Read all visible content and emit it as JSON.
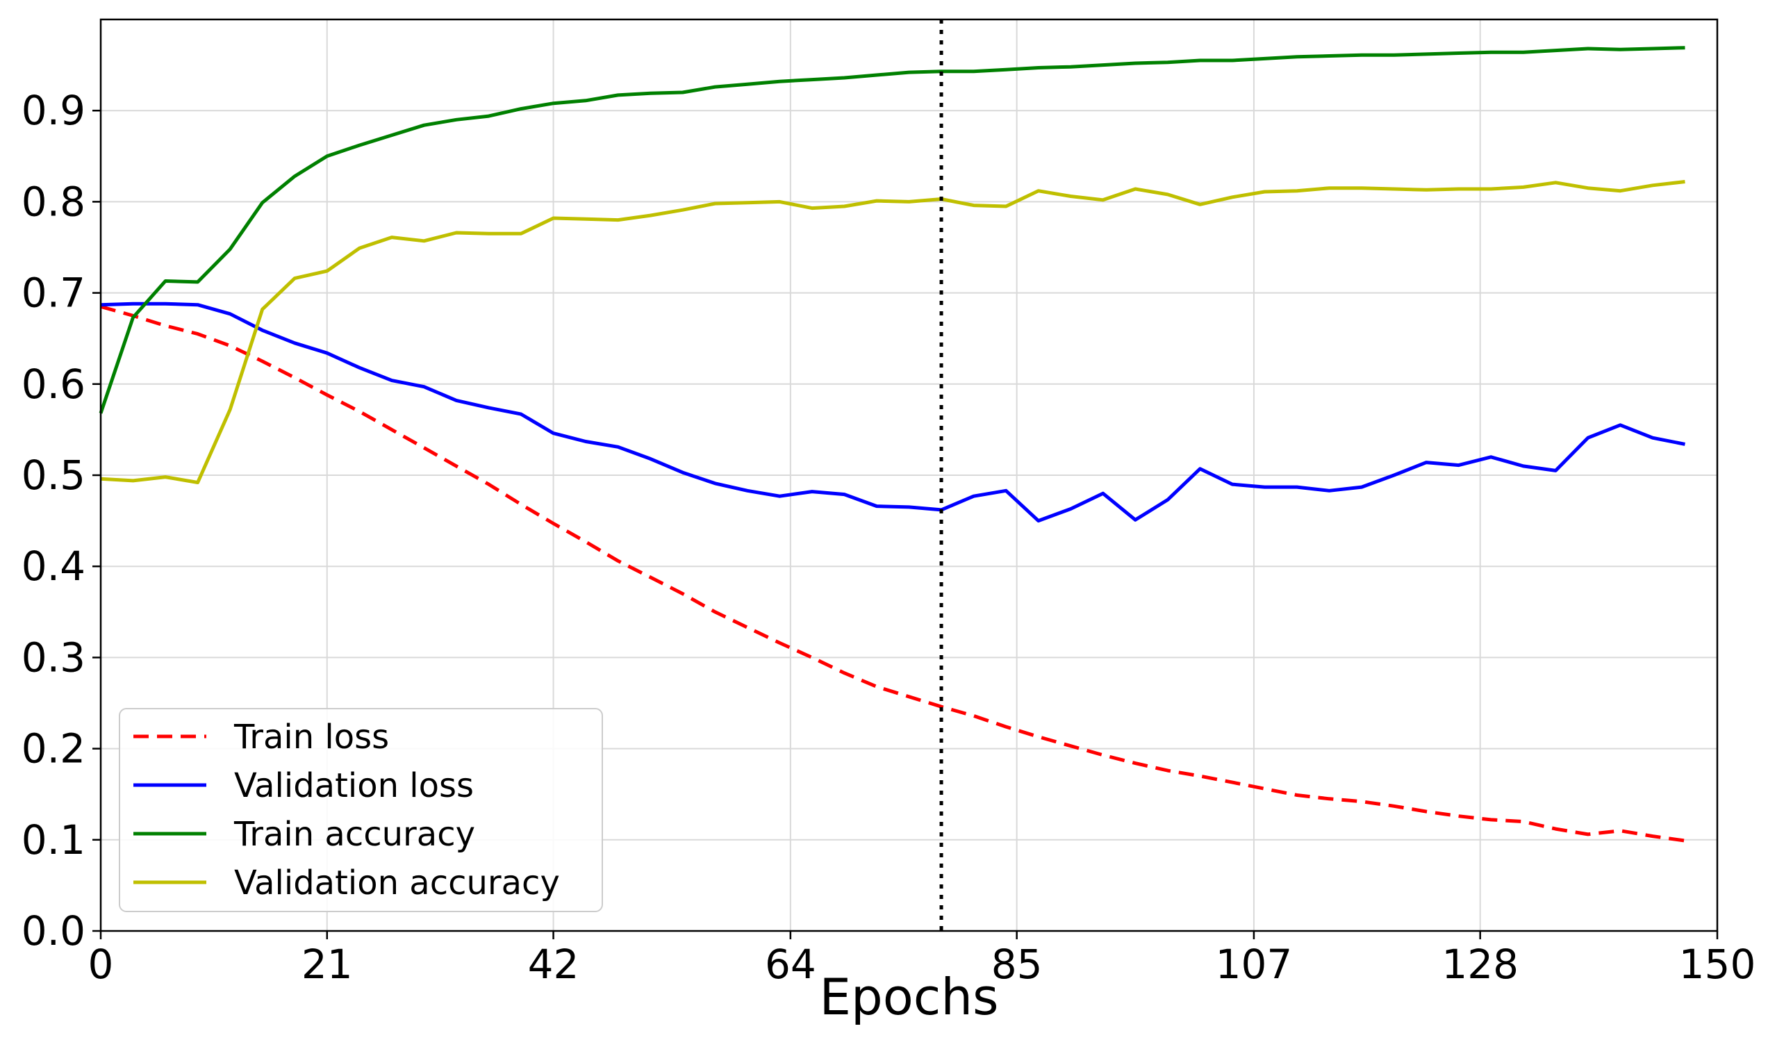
{
  "chart_data": {
    "type": "line",
    "title": "",
    "xlabel": "Epochs",
    "ylabel": "",
    "xlim": [
      0,
      150
    ],
    "ylim": [
      0,
      1.0
    ],
    "grid": true,
    "legend_position": "bottom-left",
    "x_ticks": [
      0,
      21,
      42,
      64,
      85,
      107,
      128,
      150
    ],
    "y_ticks": [
      0.0,
      0.1,
      0.2,
      0.3,
      0.4,
      0.5,
      0.6,
      0.7,
      0.8,
      0.9
    ],
    "y_tick_labels": [
      "0.0",
      "0.1",
      "0.2",
      "0.3",
      "0.4",
      "0.5",
      "0.6",
      "0.7",
      "0.8",
      "0.9"
    ],
    "vertical_marker": {
      "x": 78,
      "style": "dotted",
      "color": "#000000"
    },
    "x": [
      0,
      3,
      6,
      9,
      12,
      15,
      18,
      21,
      24,
      27,
      30,
      33,
      36,
      39,
      42,
      45,
      48,
      51,
      54,
      57,
      60,
      63,
      66,
      69,
      72,
      75,
      78,
      81,
      84,
      87,
      90,
      93,
      96,
      99,
      102,
      105,
      108,
      111,
      114,
      117,
      120,
      123,
      126,
      129,
      132,
      135,
      138,
      141,
      144,
      147
    ],
    "series": [
      {
        "name": "Train loss",
        "color": "#ff0000",
        "style": "dashed",
        "values": [
          0.685,
          0.675,
          0.664,
          0.655,
          0.642,
          0.625,
          0.607,
          0.588,
          0.57,
          0.55,
          0.53,
          0.51,
          0.49,
          0.468,
          0.447,
          0.427,
          0.406,
          0.388,
          0.37,
          0.35,
          0.333,
          0.316,
          0.3,
          0.283,
          0.268,
          0.257,
          0.246,
          0.236,
          0.224,
          0.213,
          0.203,
          0.193,
          0.184,
          0.176,
          0.17,
          0.163,
          0.156,
          0.149,
          0.145,
          0.142,
          0.137,
          0.131,
          0.126,
          0.122,
          0.12,
          0.112,
          0.106,
          0.11,
          0.104,
          0.099
        ]
      },
      {
        "name": "Validation loss",
        "color": "#0000ff",
        "style": "solid",
        "values": [
          0.687,
          0.688,
          0.688,
          0.687,
          0.677,
          0.659,
          0.645,
          0.634,
          0.618,
          0.604,
          0.597,
          0.582,
          0.574,
          0.567,
          0.546,
          0.537,
          0.531,
          0.518,
          0.503,
          0.491,
          0.483,
          0.477,
          0.482,
          0.479,
          0.466,
          0.465,
          0.462,
          0.477,
          0.483,
          0.45,
          0.463,
          0.48,
          0.451,
          0.473,
          0.507,
          0.49,
          0.487,
          0.487,
          0.483,
          0.487,
          0.5,
          0.514,
          0.511,
          0.52,
          0.51,
          0.505,
          0.541,
          0.555,
          0.541,
          0.534
        ]
      },
      {
        "name": "Train accuracy",
        "color": "#008000",
        "style": "solid",
        "values": [
          0.568,
          0.673,
          0.713,
          0.712,
          0.748,
          0.799,
          0.828,
          0.85,
          0.862,
          0.873,
          0.884,
          0.89,
          0.894,
          0.902,
          0.908,
          0.911,
          0.917,
          0.919,
          0.92,
          0.926,
          0.929,
          0.932,
          0.934,
          0.936,
          0.939,
          0.942,
          0.943,
          0.943,
          0.945,
          0.947,
          0.948,
          0.95,
          0.952,
          0.953,
          0.955,
          0.955,
          0.957,
          0.959,
          0.96,
          0.961,
          0.961,
          0.962,
          0.963,
          0.964,
          0.964,
          0.966,
          0.968,
          0.967,
          0.968,
          0.969
        ]
      },
      {
        "name": "Validation accuracy",
        "color": "#bfbf00",
        "style": "solid",
        "values": [
          0.496,
          0.494,
          0.498,
          0.492,
          0.572,
          0.682,
          0.716,
          0.724,
          0.749,
          0.761,
          0.757,
          0.766,
          0.765,
          0.765,
          0.782,
          0.781,
          0.78,
          0.785,
          0.791,
          0.798,
          0.799,
          0.8,
          0.793,
          0.795,
          0.801,
          0.8,
          0.803,
          0.796,
          0.795,
          0.812,
          0.806,
          0.802,
          0.814,
          0.808,
          0.797,
          0.805,
          0.811,
          0.812,
          0.815,
          0.815,
          0.814,
          0.813,
          0.814,
          0.814,
          0.816,
          0.821,
          0.815,
          0.812,
          0.818,
          0.822
        ]
      }
    ]
  }
}
